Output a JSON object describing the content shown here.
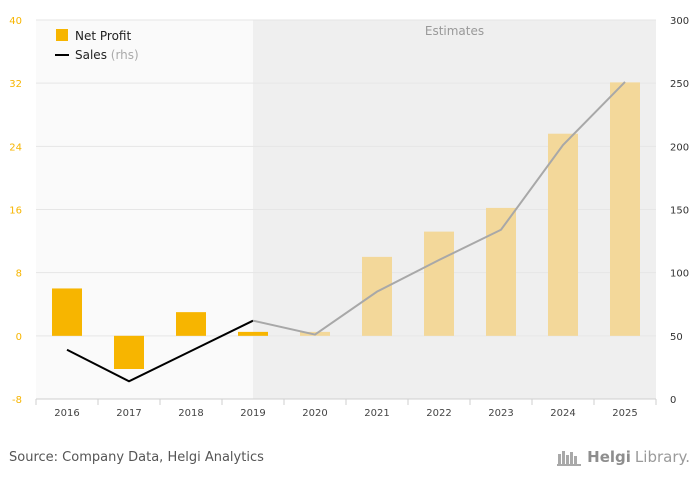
{
  "chart_data": {
    "type": "bar+line",
    "categories": [
      "2016",
      "2017",
      "2018",
      "2019",
      "2020",
      "2021",
      "2022",
      "2023",
      "2024",
      "2025"
    ],
    "series": [
      {
        "name": "Net Profit",
        "axis": "left",
        "type": "bar",
        "color": "#f7b500",
        "values": [
          6.0,
          -4.2,
          3.0,
          0.5,
          0.5,
          10.0,
          13.2,
          16.2,
          25.6,
          32.1
        ]
      },
      {
        "name": "Sales",
        "axis": "right",
        "type": "line",
        "color": "#000000",
        "values": [
          39,
          14,
          38,
          62,
          51,
          85,
          110,
          134,
          201,
          251
        ]
      }
    ],
    "left_axis": {
      "min": -8,
      "max": 40,
      "ticks": [
        -8,
        0,
        8,
        16,
        24,
        32,
        40
      ],
      "color": "#f7b500"
    },
    "right_axis": {
      "min": 0,
      "max": 300,
      "ticks": [
        0,
        50,
        100,
        150,
        200,
        250,
        300
      ],
      "color": "#000000"
    },
    "estimates_from_index": 4,
    "estimates_label": "Estimates",
    "legend": [
      {
        "label": "Net Profit",
        "suffix": ""
      },
      {
        "label": "Sales",
        "suffix": "(rhs)"
      }
    ],
    "legend_position": "top-left",
    "grid": true
  },
  "footer": {
    "source": "Source: Company Data, Helgi Analytics",
    "brand_prefix": "Helgi",
    "brand_suffix": "Library."
  },
  "colors": {
    "estimate_band": "#efefef",
    "plot_bg": "#fafafa",
    "grid": "#e6e6e6",
    "estimate_bar": "#f3d89a",
    "estimate_line": "#a8a8a8"
  }
}
